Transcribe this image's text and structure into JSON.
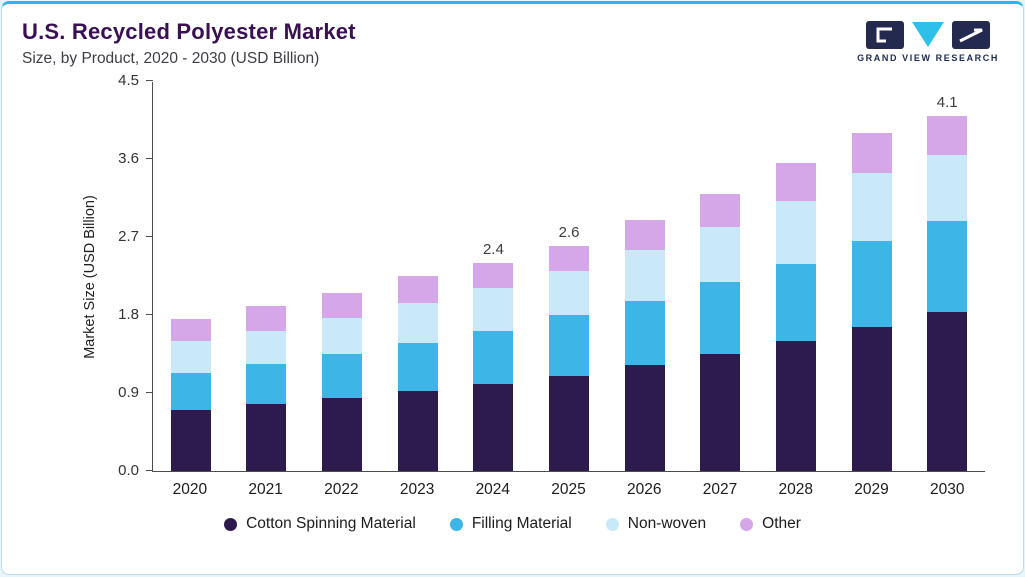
{
  "header": {
    "title": "U.S. Recycled Polyester Market",
    "subtitle": "Size, by Product, 2020 - 2030 (USD Billion)"
  },
  "logo": {
    "text": "GRAND VIEW RESEARCH"
  },
  "chart_data": {
    "type": "bar",
    "stacked": true,
    "title": "U.S. Recycled Polyester Market Size, by Product, 2020 - 2030 (USD Billion)",
    "xlabel": "",
    "ylabel": "Market Size (USD Billion)",
    "ylim": [
      0,
      4.5
    ],
    "yticks": [
      "0.0",
      "0.9",
      "1.8",
      "2.7",
      "3.6",
      "4.5"
    ],
    "grid": false,
    "legend_position": "bottom",
    "categories": [
      "2020",
      "2021",
      "2022",
      "2023",
      "2024",
      "2025",
      "2026",
      "2027",
      "2028",
      "2029",
      "2030"
    ],
    "series": [
      {
        "name": "Cotton Spinning Material",
        "color": "#2d1b4e",
        "values": [
          0.7,
          0.77,
          0.84,
          0.92,
          1.0,
          1.1,
          1.22,
          1.35,
          1.5,
          1.66,
          1.84
        ]
      },
      {
        "name": "Filling Material",
        "color": "#3db5e6",
        "values": [
          0.43,
          0.46,
          0.51,
          0.56,
          0.62,
          0.7,
          0.74,
          0.83,
          0.89,
          0.99,
          1.04
        ]
      },
      {
        "name": "Non-woven",
        "color": "#c9e9f9",
        "values": [
          0.37,
          0.39,
          0.42,
          0.46,
          0.49,
          0.51,
          0.59,
          0.64,
          0.73,
          0.79,
          0.77
        ]
      },
      {
        "name": "Other",
        "color": "#d5a6e8",
        "values": [
          0.25,
          0.28,
          0.29,
          0.31,
          0.29,
          0.29,
          0.35,
          0.38,
          0.43,
          0.46,
          0.45
        ]
      }
    ],
    "total_labels": {
      "2024": "2.4",
      "2025": "2.6",
      "2030": "4.1"
    }
  }
}
